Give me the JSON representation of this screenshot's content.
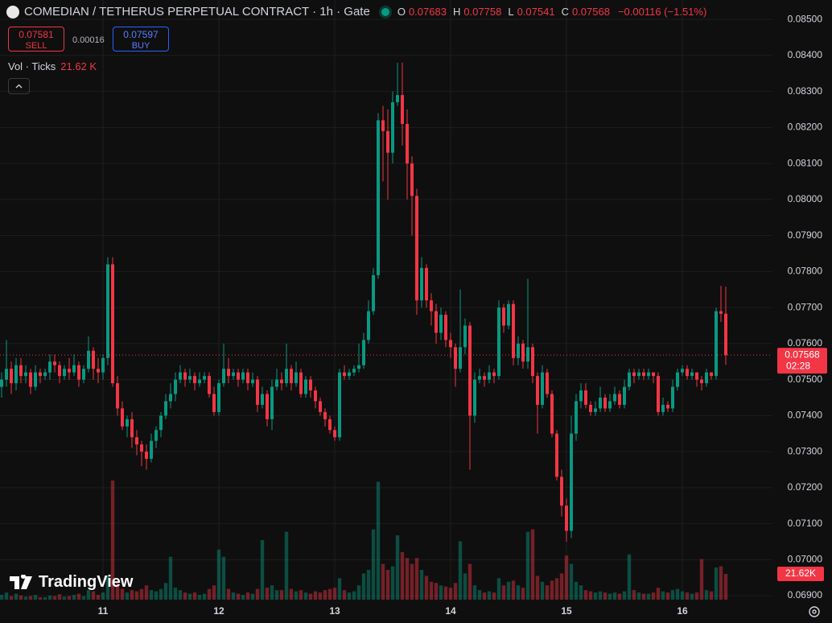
{
  "header": {
    "title": "COMEDIAN / TETHERUS PERPETUAL CONTRACT · 1h · Gate",
    "ohlc": [
      {
        "label": "O",
        "value": "0.07683"
      },
      {
        "label": "H",
        "value": "0.07758"
      },
      {
        "label": "L",
        "value": "0.07541"
      },
      {
        "label": "C",
        "value": "0.07568"
      }
    ],
    "change": "−0.00116 (−1.51%)"
  },
  "trade": {
    "sell_price": "0.07581",
    "sell_label": "SELL",
    "spread": "0.00016",
    "buy_price": "0.07597",
    "buy_label": "BUY"
  },
  "volume_legend": {
    "label": "Vol · Ticks",
    "value": "21.62 K"
  },
  "logo": "TradingView",
  "chart_data": {
    "type": "candlestick",
    "categories": [
      null,
      null,
      null,
      null,
      null,
      null,
      null,
      null,
      null,
      null,
      null,
      null,
      null,
      null,
      null,
      null,
      null,
      null,
      null,
      null,
      null,
      "11",
      null,
      null,
      null,
      null,
      null,
      null,
      null,
      null,
      null,
      null,
      null,
      null,
      null,
      null,
      null,
      null,
      null,
      null,
      null,
      null,
      null,
      null,
      null,
      "12",
      null,
      null,
      null,
      null,
      null,
      null,
      null,
      null,
      null,
      null,
      null,
      null,
      null,
      null,
      null,
      null,
      null,
      null,
      null,
      null,
      null,
      null,
      null,
      "13",
      null,
      null,
      null,
      null,
      null,
      null,
      null,
      null,
      null,
      null,
      null,
      null,
      null,
      null,
      null,
      null,
      null,
      null,
      null,
      null,
      null,
      null,
      null,
      "14",
      null,
      null,
      null,
      null,
      null,
      null,
      null,
      null,
      null,
      null,
      null,
      null,
      null,
      null,
      null,
      null,
      null,
      null,
      null,
      null,
      null,
      null,
      null,
      "15",
      null,
      null,
      null,
      null,
      null,
      null,
      null,
      null,
      null,
      null,
      null,
      null,
      null,
      null,
      null,
      null,
      null,
      null,
      null,
      null,
      null,
      null,
      null,
      "16",
      null,
      null,
      null,
      null,
      null,
      null,
      null,
      null,
      null
    ],
    "candles": [
      [
        0.0748,
        0.0752,
        0.0745,
        0.075,
        4000
      ],
      [
        0.075,
        0.0761,
        0.0748,
        0.0753,
        6000
      ],
      [
        0.0753,
        0.0755,
        0.0746,
        0.0749,
        3000
      ],
      [
        0.0749,
        0.0756,
        0.0747,
        0.0754,
        5000
      ],
      [
        0.0754,
        0.0756,
        0.0749,
        0.0751,
        3500
      ],
      [
        0.0751,
        0.0754,
        0.0749,
        0.0752,
        2500
      ],
      [
        0.0752,
        0.0753,
        0.0746,
        0.0748,
        3000
      ],
      [
        0.0748,
        0.0754,
        0.0747,
        0.0752,
        4000
      ],
      [
        0.0752,
        0.0753,
        0.0749,
        0.0751,
        2000
      ],
      [
        0.0751,
        0.0753,
        0.075,
        0.0752,
        2000
      ],
      [
        0.0752,
        0.0757,
        0.075,
        0.0755,
        3500
      ],
      [
        0.0755,
        0.0757,
        0.0752,
        0.0754,
        3000
      ],
      [
        0.0754,
        0.0755,
        0.0749,
        0.0751,
        4500
      ],
      [
        0.0751,
        0.0754,
        0.075,
        0.0753,
        2500
      ],
      [
        0.0753,
        0.0756,
        0.075,
        0.0752,
        3000
      ],
      [
        0.0752,
        0.0757,
        0.0751,
        0.0754,
        4000
      ],
      [
        0.0754,
        0.0755,
        0.0748,
        0.075,
        5000
      ],
      [
        0.075,
        0.0754,
        0.0749,
        0.0753,
        3000
      ],
      [
        0.0753,
        0.0762,
        0.0752,
        0.0758,
        8000
      ],
      [
        0.0758,
        0.0759,
        0.075,
        0.0753,
        7000
      ],
      [
        0.0753,
        0.0756,
        0.0749,
        0.0752,
        4000
      ],
      [
        0.0752,
        0.0757,
        0.075,
        0.0756,
        6000
      ],
      [
        0.0756,
        0.0784,
        0.0754,
        0.0782,
        20000
      ],
      [
        0.0782,
        0.0784,
        0.0748,
        0.0749,
        100000
      ],
      [
        0.0749,
        0.0751,
        0.074,
        0.0742,
        15000
      ],
      [
        0.0742,
        0.0744,
        0.0736,
        0.0737,
        9000
      ],
      [
        0.0737,
        0.074,
        0.0734,
        0.0739,
        6000
      ],
      [
        0.0739,
        0.0741,
        0.0731,
        0.0734,
        8000
      ],
      [
        0.0734,
        0.0736,
        0.0729,
        0.0732,
        7000
      ],
      [
        0.0732,
        0.0733,
        0.0726,
        0.073,
        9000
      ],
      [
        0.073,
        0.0732,
        0.0725,
        0.0728,
        12000
      ],
      [
        0.0728,
        0.0735,
        0.0727,
        0.0733,
        8000
      ],
      [
        0.0733,
        0.0737,
        0.0731,
        0.0736,
        7000
      ],
      [
        0.0736,
        0.0741,
        0.0734,
        0.074,
        9000
      ],
      [
        0.074,
        0.0746,
        0.0739,
        0.0744,
        14000
      ],
      [
        0.0744,
        0.0749,
        0.0742,
        0.0746,
        36000
      ],
      [
        0.0746,
        0.0752,
        0.0744,
        0.075,
        10000
      ],
      [
        0.075,
        0.0754,
        0.0749,
        0.0752,
        8000
      ],
      [
        0.0752,
        0.0753,
        0.0748,
        0.075,
        6000
      ],
      [
        0.075,
        0.0753,
        0.0749,
        0.0751,
        5000
      ],
      [
        0.0751,
        0.0752,
        0.0747,
        0.0749,
        6000
      ],
      [
        0.0749,
        0.0752,
        0.0748,
        0.075,
        4000
      ],
      [
        0.075,
        0.0752,
        0.0749,
        0.0751,
        5000
      ],
      [
        0.0751,
        0.0752,
        0.0745,
        0.0746,
        9000
      ],
      [
        0.0746,
        0.0748,
        0.074,
        0.0741,
        12000
      ],
      [
        0.0741,
        0.075,
        0.074,
        0.0749,
        42000
      ],
      [
        0.0749,
        0.076,
        0.0748,
        0.0753,
        36000
      ],
      [
        0.0753,
        0.0756,
        0.0749,
        0.0751,
        9000
      ],
      [
        0.0751,
        0.0753,
        0.075,
        0.0752,
        6000
      ],
      [
        0.0752,
        0.0753,
        0.0748,
        0.075,
        5000
      ],
      [
        0.075,
        0.0753,
        0.0749,
        0.0752,
        4000
      ],
      [
        0.0752,
        0.0753,
        0.0747,
        0.0749,
        6000
      ],
      [
        0.0749,
        0.0752,
        0.0748,
        0.075,
        5000
      ],
      [
        0.075,
        0.0751,
        0.0741,
        0.0743,
        9000
      ],
      [
        0.0743,
        0.0748,
        0.0742,
        0.0746,
        50000
      ],
      [
        0.0746,
        0.0747,
        0.0737,
        0.0739,
        10000
      ],
      [
        0.0739,
        0.075,
        0.0736,
        0.0748,
        12000
      ],
      [
        0.0748,
        0.0753,
        0.0747,
        0.075,
        8000
      ],
      [
        0.075,
        0.0752,
        0.0747,
        0.0749,
        8000
      ],
      [
        0.0749,
        0.076,
        0.0748,
        0.0753,
        57000
      ],
      [
        0.0753,
        0.0754,
        0.0747,
        0.0749,
        9000
      ],
      [
        0.0749,
        0.0755,
        0.0748,
        0.0752,
        7000
      ],
      [
        0.0752,
        0.0753,
        0.0745,
        0.0746,
        8000
      ],
      [
        0.0746,
        0.0751,
        0.0745,
        0.075,
        6000
      ],
      [
        0.075,
        0.0751,
        0.0745,
        0.0747,
        5000
      ],
      [
        0.0747,
        0.0748,
        0.0742,
        0.0744,
        7000
      ],
      [
        0.0744,
        0.0745,
        0.074,
        0.0741,
        6000
      ],
      [
        0.0741,
        0.0742,
        0.0737,
        0.0739,
        8000
      ],
      [
        0.0739,
        0.074,
        0.0735,
        0.0736,
        9000
      ],
      [
        0.0736,
        0.0737,
        0.0733,
        0.0734,
        10000
      ],
      [
        0.0734,
        0.0753,
        0.0733,
        0.0752,
        18000
      ],
      [
        0.0752,
        0.0754,
        0.075,
        0.0751,
        8000
      ],
      [
        0.0751,
        0.0753,
        0.075,
        0.0752,
        6000
      ],
      [
        0.0752,
        0.0754,
        0.0751,
        0.0753,
        7000
      ],
      [
        0.0753,
        0.076,
        0.0752,
        0.0754,
        12000
      ],
      [
        0.0754,
        0.0763,
        0.0753,
        0.0761,
        22000
      ],
      [
        0.0761,
        0.0772,
        0.076,
        0.0769,
        25000
      ],
      [
        0.0769,
        0.0781,
        0.0768,
        0.0779,
        59000
      ],
      [
        0.0779,
        0.0824,
        0.0778,
        0.0822,
        99000
      ],
      [
        0.0822,
        0.0826,
        0.0805,
        0.0819,
        30000
      ],
      [
        0.0819,
        0.0825,
        0.08,
        0.0813,
        25000
      ],
      [
        0.0813,
        0.083,
        0.081,
        0.0827,
        28000
      ],
      [
        0.0827,
        0.0838,
        0.0826,
        0.0829,
        54000
      ],
      [
        0.0829,
        0.0838,
        0.0815,
        0.0821,
        40000
      ],
      [
        0.0821,
        0.0825,
        0.08,
        0.081,
        35000
      ],
      [
        0.081,
        0.0812,
        0.079,
        0.0801,
        30000
      ],
      [
        0.0801,
        0.0803,
        0.0768,
        0.0772,
        35000
      ],
      [
        0.0772,
        0.0784,
        0.077,
        0.0781,
        25000
      ],
      [
        0.0781,
        0.0782,
        0.077,
        0.0772,
        20000
      ],
      [
        0.0772,
        0.0774,
        0.0765,
        0.0769,
        15000
      ],
      [
        0.0769,
        0.0771,
        0.076,
        0.0763,
        14000
      ],
      [
        0.0763,
        0.077,
        0.0761,
        0.0768,
        12000
      ],
      [
        0.0768,
        0.0769,
        0.0759,
        0.0761,
        11000
      ],
      [
        0.0761,
        0.0763,
        0.0756,
        0.0759,
        10000
      ],
      [
        0.0759,
        0.076,
        0.0748,
        0.0753,
        14000
      ],
      [
        0.0753,
        0.0775,
        0.0752,
        0.0759,
        49000
      ],
      [
        0.0759,
        0.0767,
        0.0757,
        0.0765,
        22000
      ],
      [
        0.0765,
        0.0766,
        0.0725,
        0.074,
        30000
      ],
      [
        0.074,
        0.0752,
        0.0738,
        0.075,
        12000
      ],
      [
        0.075,
        0.0753,
        0.0749,
        0.0751,
        8000
      ],
      [
        0.0751,
        0.0752,
        0.0748,
        0.075,
        6000
      ],
      [
        0.075,
        0.0754,
        0.0749,
        0.0752,
        7000
      ],
      [
        0.0752,
        0.0753,
        0.0749,
        0.0751,
        6000
      ],
      [
        0.0751,
        0.0772,
        0.075,
        0.077,
        18000
      ],
      [
        0.077,
        0.0771,
        0.0763,
        0.0765,
        12000
      ],
      [
        0.0765,
        0.0772,
        0.0764,
        0.0771,
        15000
      ],
      [
        0.0771,
        0.0772,
        0.0754,
        0.0756,
        16000
      ],
      [
        0.0756,
        0.0762,
        0.0754,
        0.076,
        12000
      ],
      [
        0.076,
        0.0761,
        0.0753,
        0.0755,
        10000
      ],
      [
        0.0755,
        0.0778,
        0.0753,
        0.0759,
        57000
      ],
      [
        0.0759,
        0.076,
        0.0749,
        0.0751,
        59000
      ],
      [
        0.0751,
        0.0752,
        0.0735,
        0.0743,
        20000
      ],
      [
        0.0743,
        0.0754,
        0.0742,
        0.0752,
        15000
      ],
      [
        0.0752,
        0.0753,
        0.0745,
        0.0746,
        12000
      ],
      [
        0.0746,
        0.0747,
        0.0734,
        0.0735,
        16000
      ],
      [
        0.0735,
        0.0736,
        0.0722,
        0.0723,
        18000
      ],
      [
        0.0723,
        0.0725,
        0.0712,
        0.0715,
        22000
      ],
      [
        0.0715,
        0.0717,
        0.0705,
        0.0708,
        37000
      ],
      [
        0.0708,
        0.074,
        0.0706,
        0.0735,
        30000
      ],
      [
        0.0735,
        0.0746,
        0.0733,
        0.0744,
        15000
      ],
      [
        0.0744,
        0.0749,
        0.0742,
        0.0747,
        12000
      ],
      [
        0.0747,
        0.0749,
        0.0742,
        0.0743,
        8000
      ],
      [
        0.0743,
        0.0744,
        0.074,
        0.0741,
        7000
      ],
      [
        0.0741,
        0.0744,
        0.074,
        0.0742,
        6000
      ],
      [
        0.0742,
        0.0748,
        0.0741,
        0.0745,
        7000
      ],
      [
        0.0745,
        0.0746,
        0.0741,
        0.0742,
        6000
      ],
      [
        0.0742,
        0.0746,
        0.0741,
        0.0744,
        5000
      ],
      [
        0.0744,
        0.0748,
        0.0743,
        0.0746,
        6000
      ],
      [
        0.0746,
        0.0747,
        0.0742,
        0.0743,
        5000
      ],
      [
        0.0743,
        0.075,
        0.0742,
        0.0748,
        7000
      ],
      [
        0.0748,
        0.0753,
        0.0747,
        0.0752,
        38000
      ],
      [
        0.0752,
        0.0753,
        0.0749,
        0.0751,
        8000
      ],
      [
        0.0751,
        0.0753,
        0.075,
        0.0752,
        6000
      ],
      [
        0.0752,
        0.0753,
        0.075,
        0.0751,
        5000
      ],
      [
        0.0751,
        0.0753,
        0.075,
        0.0752,
        5000
      ],
      [
        0.0752,
        0.0752,
        0.0749,
        0.0751,
        6000
      ],
      [
        0.0751,
        0.0752,
        0.074,
        0.0741,
        10000
      ],
      [
        0.0741,
        0.0745,
        0.074,
        0.0743,
        7000
      ],
      [
        0.0743,
        0.0744,
        0.0741,
        0.0742,
        6000
      ],
      [
        0.0742,
        0.075,
        0.0741,
        0.0748,
        8000
      ],
      [
        0.0748,
        0.0753,
        0.0747,
        0.0752,
        9000
      ],
      [
        0.0752,
        0.0754,
        0.0751,
        0.0753,
        7000
      ],
      [
        0.0753,
        0.0754,
        0.075,
        0.0751,
        6000
      ],
      [
        0.0751,
        0.0753,
        0.075,
        0.0752,
        5000
      ],
      [
        0.0752,
        0.0752,
        0.0748,
        0.075,
        6000
      ],
      [
        0.075,
        0.0751,
        0.0747,
        0.0749,
        34000
      ],
      [
        0.0749,
        0.0753,
        0.0748,
        0.0752,
        8000
      ],
      [
        0.0752,
        0.0752,
        0.075,
        0.0751,
        7000
      ],
      [
        0.0751,
        0.077,
        0.075,
        0.0769,
        27000
      ],
      [
        0.0769,
        0.0776,
        0.0766,
        0.07683,
        28000
      ],
      [
        0.07683,
        0.07758,
        0.07541,
        0.07568,
        21620
      ]
    ],
    "ylim": [
      0.06889,
      0.08554
    ],
    "yticks": [
      {
        "value": 0.085,
        "label": "0.08500"
      },
      {
        "value": 0.084,
        "label": "0.08400"
      },
      {
        "value": 0.083,
        "label": "0.08300"
      },
      {
        "value": 0.082,
        "label": "0.08200"
      },
      {
        "value": 0.081,
        "label": "0.08100"
      },
      {
        "value": 0.08,
        "label": "0.08000"
      },
      {
        "value": 0.079,
        "label": "0.07900"
      },
      {
        "value": 0.078,
        "label": "0.07800"
      },
      {
        "value": 0.077,
        "label": "0.07700"
      },
      {
        "value": 0.076,
        "label": "0.07600"
      },
      {
        "value": 0.075,
        "label": "0.07500"
      },
      {
        "value": 0.074,
        "label": "0.07400"
      },
      {
        "value": 0.073,
        "label": "0.07300"
      },
      {
        "value": 0.072,
        "label": "0.07200"
      },
      {
        "value": 0.071,
        "label": "0.07100"
      },
      {
        "value": 0.07,
        "label": "0.07000"
      },
      {
        "value": 0.069,
        "label": "0.06900"
      }
    ],
    "grid": true,
    "up_color": "#089981",
    "down_color": "#f23645",
    "last_price_label": "0.07568",
    "countdown": "02:28",
    "volume_label": "21.62K"
  }
}
